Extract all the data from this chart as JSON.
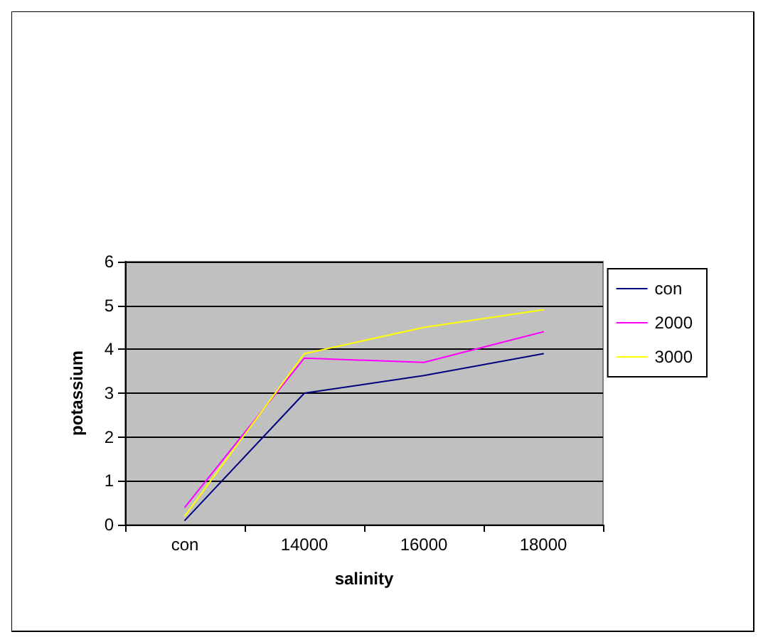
{
  "chart_data": {
    "type": "line",
    "xlabel": "salinity",
    "ylabel": "potassium",
    "categories": [
      "con",
      "14000",
      "16000",
      "18000"
    ],
    "series": [
      {
        "name": "con",
        "color": "#000080",
        "values": [
          0.1,
          3.0,
          3.4,
          3.9
        ]
      },
      {
        "name": "2000",
        "color": "#ff00ff",
        "values": [
          0.4,
          3.8,
          3.7,
          4.4
        ]
      },
      {
        "name": "3000",
        "color": "#ffff00",
        "values": [
          0.2,
          3.9,
          4.5,
          4.9
        ]
      }
    ],
    "ylim": [
      0,
      6
    ],
    "yticks": [
      0,
      1,
      2,
      3,
      4,
      5,
      6
    ],
    "grid": "y",
    "legend": "right",
    "marker": "none",
    "line_style": "solid"
  }
}
